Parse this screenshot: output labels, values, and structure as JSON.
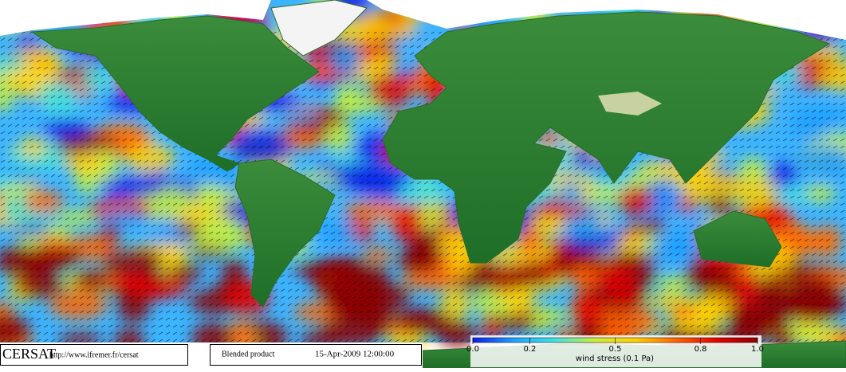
{
  "footer": {
    "logo": "CERSAT",
    "url": "http://www.ifremer.fr/cersat",
    "product": "Blended product",
    "date": "15-Apr-2009 12:00:00"
  },
  "colorbar": {
    "label": "wind stress (0.1 Pa)",
    "lim": [
      0,
      1
    ],
    "ticks": [
      {
        "value": 0,
        "label": "0.0"
      },
      0.2,
      0.5,
      0.8,
      {
        "value": 1,
        "label": "1.0"
      }
    ],
    "colors": [
      "#0a1ee6",
      "#1ea0ff",
      "#40e0e0",
      "#c8f03c",
      "#ffd200",
      "#ff6400",
      "#e60000",
      "#8c0000"
    ]
  }
}
